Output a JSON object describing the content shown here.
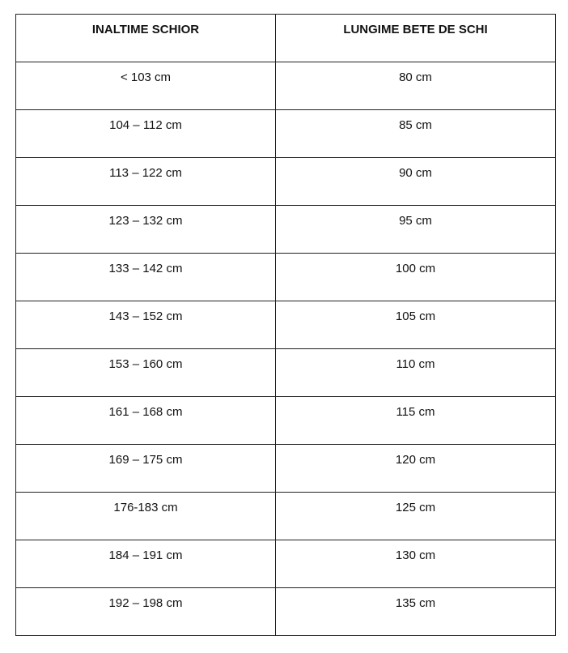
{
  "table": {
    "headers": [
      "INALTIME SCHIOR",
      "LUNGIME BETE DE SCHI"
    ],
    "rows": [
      [
        "< 103 cm",
        "80 cm"
      ],
      [
        "104 – 112 cm",
        "85 cm"
      ],
      [
        "113 – 122 cm",
        "90 cm"
      ],
      [
        "123 – 132 cm",
        "95 cm"
      ],
      [
        "133 – 142 cm",
        "100 cm"
      ],
      [
        "143 – 152 cm",
        "105 cm"
      ],
      [
        "153 – 160 cm",
        "110 cm"
      ],
      [
        "161 – 168 cm",
        "115 cm"
      ],
      [
        "169 – 175 cm",
        "120 cm"
      ],
      [
        "176-183 cm",
        "125 cm"
      ],
      [
        "184 – 191 cm",
        "130 cm"
      ],
      [
        "192 – 198 cm",
        "135 cm"
      ]
    ]
  }
}
